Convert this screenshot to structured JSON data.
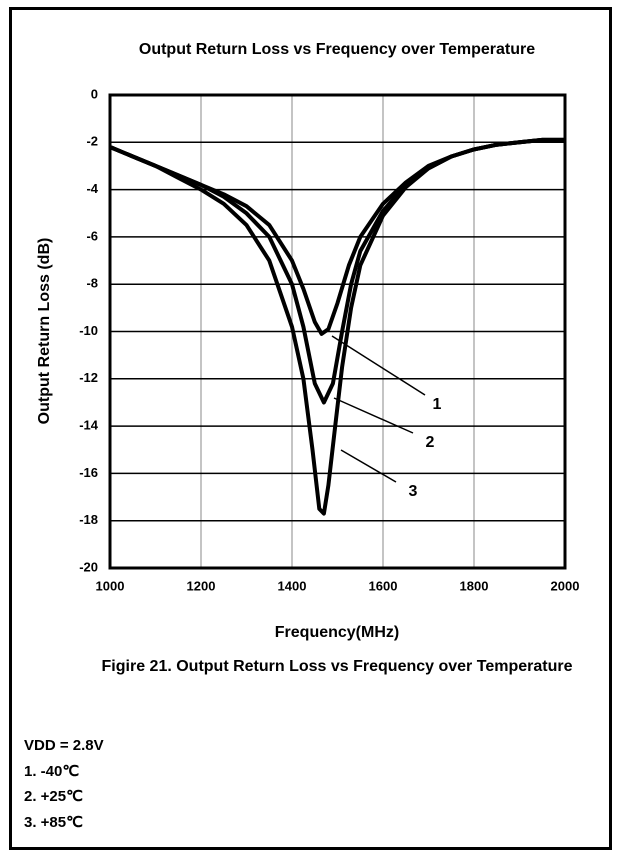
{
  "chart_data": {
    "type": "line",
    "title": "Output Return Loss vs Frequency over Temperature",
    "xlabel": "Frequency(MHz)",
    "ylabel": "Output Return Loss (dB)",
    "xlim": [
      1000,
      2000
    ],
    "xticks": [
      1000,
      1200,
      1400,
      1600,
      1800,
      2000
    ],
    "ylim": [
      -20,
      0
    ],
    "yticks": [
      0,
      -2,
      -4,
      -6,
      -8,
      -10,
      -12,
      -14,
      -16,
      -18,
      -20
    ],
    "grid": true,
    "series": [
      {
        "name": "1",
        "color": "#000000",
        "x": [
          1000,
          1050,
          1100,
          1150,
          1200,
          1250,
          1300,
          1350,
          1400,
          1425,
          1450,
          1465,
          1480,
          1500,
          1525,
          1550,
          1600,
          1650,
          1700,
          1750,
          1800,
          1850,
          1900,
          1950,
          2000
        ],
        "values": [
          -2.2,
          -2.6,
          -3.0,
          -3.4,
          -3.8,
          -4.2,
          -4.7,
          -5.5,
          -7.0,
          -8.2,
          -9.6,
          -10.1,
          -9.9,
          -8.8,
          -7.2,
          -6.0,
          -4.6,
          -3.7,
          -3.0,
          -2.6,
          -2.3,
          -2.1,
          -2.0,
          -1.9,
          -1.9
        ]
      },
      {
        "name": "2",
        "color": "#000000",
        "x": [
          1000,
          1050,
          1100,
          1150,
          1200,
          1250,
          1300,
          1350,
          1400,
          1425,
          1450,
          1470,
          1490,
          1510,
          1530,
          1550,
          1600,
          1650,
          1700,
          1750,
          1800,
          1850,
          1900,
          1950,
          2000
        ],
        "values": [
          -2.2,
          -2.6,
          -3.0,
          -3.4,
          -3.8,
          -4.3,
          -5.0,
          -6.0,
          -8.0,
          -9.8,
          -12.2,
          -13.0,
          -12.2,
          -10.0,
          -8.0,
          -6.6,
          -4.9,
          -3.8,
          -3.1,
          -2.6,
          -2.3,
          -2.1,
          -2.0,
          -1.9,
          -1.9
        ]
      },
      {
        "name": "3",
        "color": "#000000",
        "x": [
          1000,
          1050,
          1100,
          1150,
          1200,
          1250,
          1300,
          1350,
          1400,
          1425,
          1445,
          1460,
          1470,
          1480,
          1495,
          1510,
          1530,
          1550,
          1600,
          1650,
          1700,
          1750,
          1800,
          1850,
          1900,
          1950,
          2000
        ],
        "values": [
          -2.2,
          -2.6,
          -3.0,
          -3.5,
          -4.0,
          -4.6,
          -5.5,
          -7.0,
          -9.8,
          -12.0,
          -15.0,
          -17.5,
          -17.7,
          -16.5,
          -14.0,
          -11.5,
          -9.0,
          -7.2,
          -5.1,
          -3.9,
          -3.1,
          -2.6,
          -2.3,
          -2.1,
          -2.0,
          -1.9,
          -1.9
        ]
      }
    ]
  },
  "caption": "Figire 21. Output Return Loss vs Frequency over Temperature",
  "notes": [
    "VDD = 2.8V",
    "1.  -40℃",
    "2.  +25℃",
    "3.  +85℃"
  ]
}
